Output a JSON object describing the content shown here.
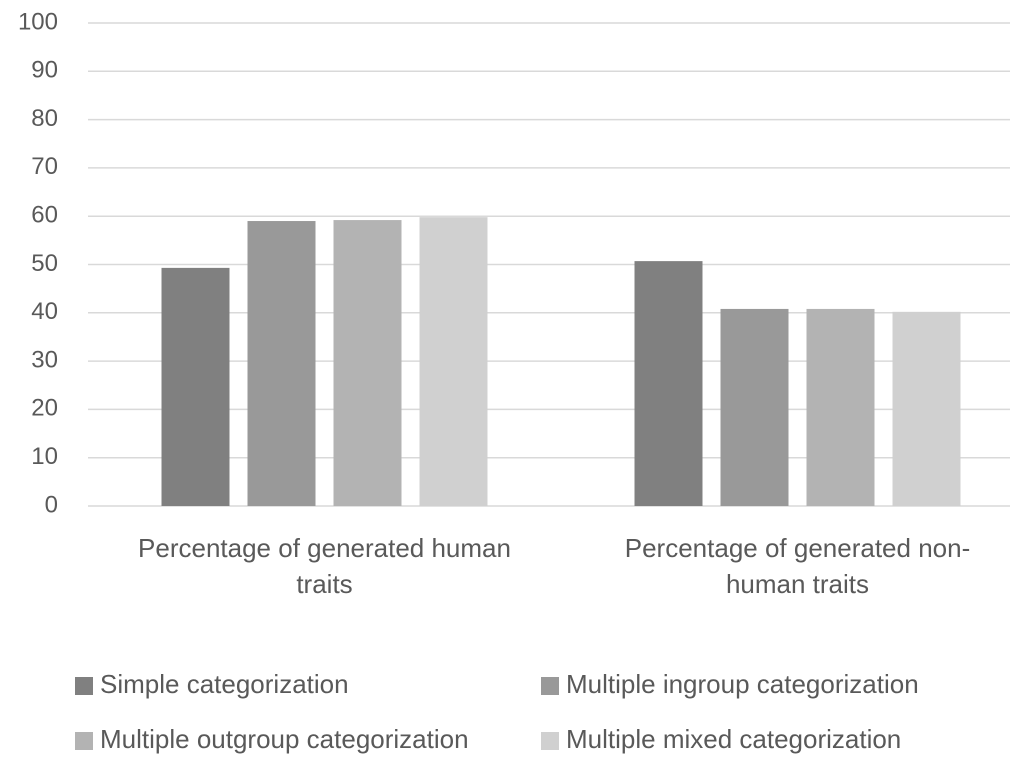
{
  "chart_data": {
    "type": "bar",
    "categories": [
      [
        "Percentage of generated human",
        "traits"
      ],
      [
        "Percentage of generated non-",
        "human traits"
      ]
    ],
    "series": [
      {
        "name": "Simple categorization",
        "color": "#808080",
        "values": [
          49.3,
          50.7
        ]
      },
      {
        "name": "Multiple ingroup categorization",
        "color": "#999999",
        "values": [
          59.0,
          40.8
        ]
      },
      {
        "name": "Multiple outgroup categorization",
        "color": "#b3b3b3",
        "values": [
          59.2,
          40.8
        ]
      },
      {
        "name": "Multiple mixed categorization",
        "color": "#d0d0d0",
        "values": [
          59.8,
          40.2
        ]
      }
    ],
    "ylim": [
      0,
      100
    ],
    "yticks": [
      0,
      10,
      20,
      30,
      40,
      50,
      60,
      70,
      80,
      90,
      100
    ],
    "grid": true,
    "legend": "bottom"
  }
}
